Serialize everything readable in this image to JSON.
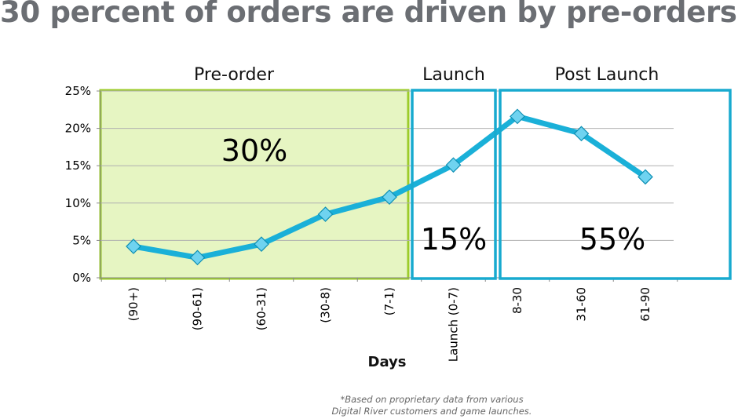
{
  "title": "30 percent of orders are driven by pre-orders.",
  "footnote_line1": "*Based on proprietary data from various",
  "footnote_line2": "Digital River customers and game launches.",
  "colors": {
    "line": "#1ab0d8",
    "marker": "#6fd3f0",
    "preorder_fill": "#e6f5c2",
    "preorder_border": "#9ccc2a",
    "region_border": "#18aacf",
    "grid": "#b0b0b0"
  },
  "chart_data": {
    "type": "line",
    "title": "",
    "xlabel": "Days",
    "ylabel": "",
    "ylim": [
      0,
      25
    ],
    "y_ticks": [
      "0%",
      "5%",
      "10%",
      "15%",
      "20%",
      "25%"
    ],
    "categories": [
      "(90+)",
      "(90-61)",
      "(60-31)",
      "(30-8)",
      "(7-1)",
      "Launch (0-7)",
      "8-30",
      "31-60",
      "61-90"
    ],
    "values": [
      4.2,
      2.7,
      4.5,
      8.5,
      10.8,
      15.1,
      21.6,
      19.3,
      13.5
    ],
    "grid": true,
    "regions": [
      {
        "label": "Pre-order",
        "percent": "30%",
        "from_index": 0,
        "to_index": 4,
        "style": "filled"
      },
      {
        "label": "Launch",
        "percent": "15%",
        "from_index": 5,
        "to_index": 5,
        "style": "outline"
      },
      {
        "label": "Post Launch",
        "percent": "55%",
        "from_index": 6,
        "to_index": 8,
        "style": "outline"
      }
    ]
  }
}
